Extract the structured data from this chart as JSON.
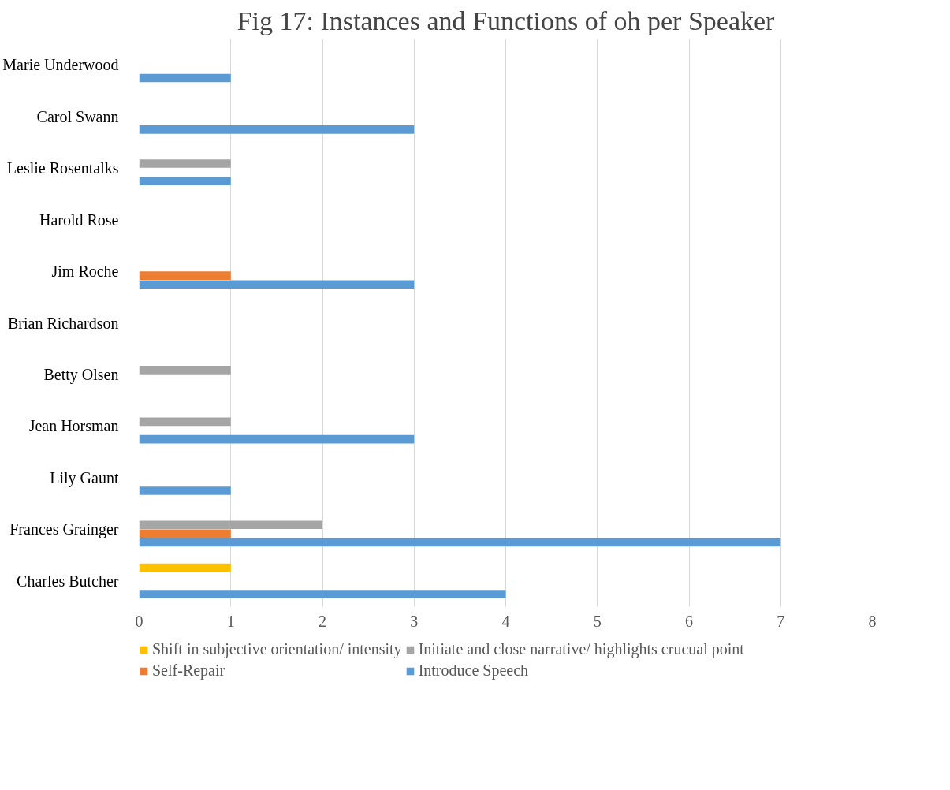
{
  "chart_data": {
    "type": "bar",
    "orientation": "horizontal",
    "title": "Fig 17: Instances and Functions of oh per Speaker",
    "categories": [
      "Marie Underwood",
      "Carol Swann",
      "Leslie Rosentalks",
      "Harold Rose",
      "Jim Roche",
      "Brian Richardson",
      "Betty Olsen",
      "Jean Horsman",
      "Lily Gaunt",
      "Frances Grainger",
      "Charles Butcher"
    ],
    "series": [
      {
        "name": "Shift in subjective orientation/ intensity",
        "color": "#ffc000",
        "values": [
          0,
          0,
          0,
          0,
          0,
          0,
          0,
          0,
          0,
          0,
          1
        ]
      },
      {
        "name": "Initiate and close narrative/ highlights crucual point",
        "color": "#a5a5a5",
        "values": [
          0,
          0,
          1,
          0,
          0,
          0,
          1,
          1,
          0,
          2,
          0
        ]
      },
      {
        "name": "Self-Repair",
        "color": "#ed7d31",
        "values": [
          0,
          0,
          0,
          0,
          1,
          0,
          0,
          0,
          0,
          1,
          0
        ]
      },
      {
        "name": "Introduce Speech",
        "color": "#5b9bd5",
        "values": [
          1,
          3,
          1,
          0,
          3,
          0,
          0,
          3,
          1,
          7,
          4
        ]
      }
    ],
    "xlim": [
      0,
      8
    ],
    "xticks": [
      0,
      1,
      2,
      3,
      4,
      5,
      6,
      7,
      8
    ],
    "grid": "x",
    "legend": "bottom"
  }
}
